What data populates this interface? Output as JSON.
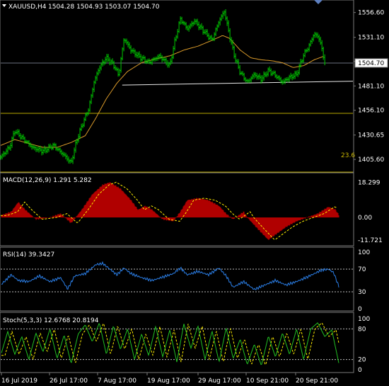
{
  "chart_data": {
    "type": "line",
    "header": {
      "symbol": "XAUUSD,H4",
      "ohlc": "1504.28 1504.93 1503.07 1504.70"
    },
    "x_tick_labels": [
      "16 Jul 2019",
      "26 Jul 17:00",
      "7 Aug 17:00",
      "19 Aug 17:00",
      "29 Aug 17:00",
      "10 Sep 21:00",
      "20 Sep 21:00"
    ],
    "price_panel": {
      "y_ticks": [
        1556.6,
        1531.1,
        1506.35,
        1481.1,
        1456.1,
        1430.65,
        1405.6
      ],
      "ylim": [
        1394,
        1568
      ],
      "current_price": 1504.7,
      "current_price_label": "1504.70",
      "fib_label": "23.6",
      "horizontal_levels": [
        1453.0,
        1392.5
      ],
      "trendline": {
        "from": [
          0.345,
          1482.0
        ],
        "to": [
          1.0,
          1486.0
        ]
      },
      "price_waypoints": [
        [
          0.0,
          1408
        ],
        [
          0.025,
          1418
        ],
        [
          0.04,
          1435
        ],
        [
          0.06,
          1428
        ],
        [
          0.09,
          1418
        ],
        [
          0.12,
          1414
        ],
        [
          0.15,
          1420
        ],
        [
          0.18,
          1410
        ],
        [
          0.2,
          1402
        ],
        [
          0.215,
          1424
        ],
        [
          0.23,
          1440
        ],
        [
          0.25,
          1458
        ],
        [
          0.265,
          1485
        ],
        [
          0.28,
          1500
        ],
        [
          0.3,
          1510
        ],
        [
          0.32,
          1503
        ],
        [
          0.335,
          1492
        ],
        [
          0.35,
          1530
        ],
        [
          0.37,
          1518
        ],
        [
          0.39,
          1512
        ],
        [
          0.42,
          1505
        ],
        [
          0.45,
          1512
        ],
        [
          0.48,
          1502
        ],
        [
          0.495,
          1528
        ],
        [
          0.51,
          1550
        ],
        [
          0.53,
          1540
        ],
        [
          0.55,
          1548
        ],
        [
          0.58,
          1536
        ],
        [
          0.6,
          1528
        ],
        [
          0.62,
          1548
        ],
        [
          0.635,
          1558
        ],
        [
          0.65,
          1532
        ],
        [
          0.665,
          1510
        ],
        [
          0.68,
          1495
        ],
        [
          0.7,
          1485
        ],
        [
          0.72,
          1493
        ],
        [
          0.74,
          1488
        ],
        [
          0.76,
          1497
        ],
        [
          0.78,
          1492
        ],
        [
          0.8,
          1485
        ],
        [
          0.82,
          1490
        ],
        [
          0.84,
          1493
        ],
        [
          0.86,
          1513
        ],
        [
          0.875,
          1522
        ],
        [
          0.89,
          1535
        ],
        [
          0.905,
          1530
        ],
        [
          0.92,
          1504.7
        ]
      ],
      "ma_waypoints": [
        [
          0.0,
          1420
        ],
        [
          0.04,
          1426
        ],
        [
          0.08,
          1422
        ],
        [
          0.12,
          1418
        ],
        [
          0.16,
          1418
        ],
        [
          0.2,
          1423
        ],
        [
          0.24,
          1430
        ],
        [
          0.27,
          1448
        ],
        [
          0.3,
          1468
        ],
        [
          0.33,
          1484
        ],
        [
          0.36,
          1496
        ],
        [
          0.4,
          1505
        ],
        [
          0.44,
          1509
        ],
        [
          0.48,
          1512
        ],
        [
          0.52,
          1518
        ],
        [
          0.56,
          1522
        ],
        [
          0.6,
          1528
        ],
        [
          0.63,
          1533
        ],
        [
          0.65,
          1530
        ],
        [
          0.68,
          1518
        ],
        [
          0.71,
          1510
        ],
        [
          0.74,
          1508
        ],
        [
          0.77,
          1507
        ],
        [
          0.8,
          1505
        ],
        [
          0.83,
          1500
        ],
        [
          0.86,
          1502
        ],
        [
          0.89,
          1508
        ],
        [
          0.92,
          1512
        ]
      ]
    },
    "macd_panel": {
      "label": "MACD(12,26,9) 1.291 5.282",
      "y_ticks": [
        18.299,
        0.0,
        -11.721
      ],
      "ylim": [
        -14,
        21
      ],
      "hist_waypoints": [
        [
          0.0,
          1
        ],
        [
          0.03,
          3
        ],
        [
          0.05,
          8
        ],
        [
          0.07,
          4
        ],
        [
          0.1,
          -1
        ],
        [
          0.14,
          0
        ],
        [
          0.17,
          2
        ],
        [
          0.2,
          -3
        ],
        [
          0.23,
          4
        ],
        [
          0.26,
          12
        ],
        [
          0.29,
          17
        ],
        [
          0.31,
          18.3
        ],
        [
          0.34,
          15
        ],
        [
          0.37,
          9
        ],
        [
          0.39,
          4
        ],
        [
          0.41,
          6
        ],
        [
          0.43,
          4
        ],
        [
          0.46,
          -1
        ],
        [
          0.49,
          -2
        ],
        [
          0.51,
          3
        ],
        [
          0.53,
          9
        ],
        [
          0.56,
          10
        ],
        [
          0.59,
          9
        ],
        [
          0.62,
          6
        ],
        [
          0.64,
          2
        ],
        [
          0.66,
          -1
        ],
        [
          0.69,
          3
        ],
        [
          0.7,
          0
        ],
        [
          0.73,
          -6
        ],
        [
          0.76,
          -11.7
        ],
        [
          0.78,
          -9
        ],
        [
          0.81,
          -5
        ],
        [
          0.84,
          -2
        ],
        [
          0.87,
          0
        ],
        [
          0.9,
          2
        ],
        [
          0.93,
          5.5
        ],
        [
          0.95,
          4.2
        ],
        [
          0.96,
          1.3
        ]
      ]
    },
    "rsi_panel": {
      "label": "RSI(14) 39.3427",
      "y_ticks": [
        100,
        70,
        30,
        0
      ],
      "ylim": [
        0,
        100
      ],
      "levels": [
        70,
        30
      ],
      "rsi_waypoints": [
        [
          0.0,
          42
        ],
        [
          0.03,
          60
        ],
        [
          0.05,
          50
        ],
        [
          0.08,
          48
        ],
        [
          0.11,
          58
        ],
        [
          0.14,
          48
        ],
        [
          0.17,
          55
        ],
        [
          0.19,
          35
        ],
        [
          0.21,
          58
        ],
        [
          0.24,
          62
        ],
        [
          0.27,
          78
        ],
        [
          0.29,
          80
        ],
        [
          0.31,
          70
        ],
        [
          0.33,
          60
        ],
        [
          0.35,
          72
        ],
        [
          0.37,
          62
        ],
        [
          0.4,
          55
        ],
        [
          0.43,
          50
        ],
        [
          0.46,
          56
        ],
        [
          0.49,
          62
        ],
        [
          0.51,
          72
        ],
        [
          0.53,
          60
        ],
        [
          0.56,
          66
        ],
        [
          0.59,
          60
        ],
        [
          0.62,
          72
        ],
        [
          0.64,
          58
        ],
        [
          0.66,
          38
        ],
        [
          0.69,
          48
        ],
        [
          0.72,
          34
        ],
        [
          0.75,
          42
        ],
        [
          0.78,
          50
        ],
        [
          0.81,
          42
        ],
        [
          0.84,
          48
        ],
        [
          0.87,
          56
        ],
        [
          0.89,
          62
        ],
        [
          0.91,
          68
        ],
        [
          0.93,
          70
        ],
        [
          0.945,
          64
        ],
        [
          0.96,
          39.3
        ]
      ]
    },
    "stoch_panel": {
      "label": "Stoch(5,3,3) 12.6768 20.8194",
      "y_ticks": [
        100,
        80,
        20,
        0
      ],
      "ylim": [
        0,
        100
      ],
      "levels": [
        80,
        20
      ],
      "main_waypoints": [
        [
          0.0,
          28
        ],
        [
          0.02,
          75
        ],
        [
          0.04,
          30
        ],
        [
          0.06,
          65
        ],
        [
          0.08,
          20
        ],
        [
          0.1,
          72
        ],
        [
          0.12,
          35
        ],
        [
          0.14,
          80
        ],
        [
          0.16,
          22
        ],
        [
          0.18,
          68
        ],
        [
          0.2,
          12
        ],
        [
          0.22,
          70
        ],
        [
          0.24,
          88
        ],
        [
          0.26,
          55
        ],
        [
          0.28,
          92
        ],
        [
          0.3,
          30
        ],
        [
          0.32,
          86
        ],
        [
          0.34,
          40
        ],
        [
          0.36,
          80
        ],
        [
          0.38,
          20
        ],
        [
          0.4,
          70
        ],
        [
          0.42,
          28
        ],
        [
          0.44,
          85
        ],
        [
          0.46,
          25
        ],
        [
          0.48,
          78
        ],
        [
          0.5,
          15
        ],
        [
          0.52,
          90
        ],
        [
          0.54,
          42
        ],
        [
          0.56,
          86
        ],
        [
          0.58,
          20
        ],
        [
          0.6,
          76
        ],
        [
          0.62,
          15
        ],
        [
          0.64,
          82
        ],
        [
          0.66,
          22
        ],
        [
          0.68,
          60
        ],
        [
          0.7,
          10
        ],
        [
          0.72,
          50
        ],
        [
          0.74,
          8
        ],
        [
          0.76,
          66
        ],
        [
          0.78,
          25
        ],
        [
          0.8,
          72
        ],
        [
          0.82,
          30
        ],
        [
          0.84,
          80
        ],
        [
          0.86,
          20
        ],
        [
          0.88,
          80
        ],
        [
          0.9,
          92
        ],
        [
          0.92,
          65
        ],
        [
          0.94,
          78
        ],
        [
          0.96,
          12.7
        ]
      ],
      "signal_lag": 0.012
    }
  }
}
